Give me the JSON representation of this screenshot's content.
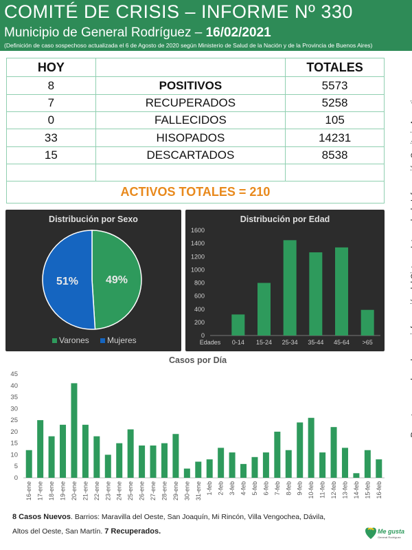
{
  "header": {
    "title": "COMITÉ DE CRISIS – INFORME Nº 330",
    "subtitle_prefix": "Municipio de General Rodríguez – ",
    "subtitle_date": "16/02/2021",
    "note": "(Definición de caso sospechoso actualizada el 6 de Agosto de 2020 según Ministerio de Salud de la Nación y de la Provincia de Buenos Aires)"
  },
  "table": {
    "col_hoy": "HOY",
    "col_totales": "TOTALES",
    "rows": [
      {
        "hoy": "8",
        "label": "POSITIVOS",
        "total": "5573"
      },
      {
        "hoy": "7",
        "label": "RECUPERADOS",
        "total": "5258"
      },
      {
        "hoy": "0",
        "label": "FALLECIDOS",
        "total": "105"
      },
      {
        "hoy": "33",
        "label": "HISOPADOS",
        "total": "14231"
      },
      {
        "hoy": "15",
        "label": "DESCARTADOS",
        "total": "8538"
      }
    ],
    "activos": "ACTIVOS TOTALES = 210"
  },
  "side_text": "Reporte generado en base a información del Sistema Integrado de Información Sanitaria Argentino.",
  "colors": {
    "green": "#2e8b57",
    "bar_green": "#2e9a5c",
    "blue": "#1565c0",
    "orange": "#e8891c",
    "panel": "#2c2c2c"
  },
  "chart_data": [
    {
      "type": "pie",
      "title": "Distribución por Sexo",
      "categories": [
        "Varones",
        "Mujeres"
      ],
      "values": [
        49,
        51
      ],
      "labels": [
        "49%",
        "51%"
      ],
      "colors": [
        "#2e9a5c",
        "#1565c0"
      ],
      "legend": "bottom"
    },
    {
      "type": "bar",
      "title": "Distribución por Edad",
      "xlabel": "Edades",
      "categories": [
        "0-14",
        "15-24",
        "25-34",
        "35-44",
        "45-64",
        ">65"
      ],
      "values": [
        320,
        800,
        1450,
        1265,
        1340,
        390
      ],
      "ylim": [
        0,
        1600
      ],
      "yticks": [
        "0",
        "200",
        "400",
        "600",
        "800",
        "1000",
        "1200",
        "1400",
        "1600"
      ]
    },
    {
      "type": "bar",
      "title": "Casos por Día",
      "categories": [
        "16-ene",
        "17-ene",
        "18-ene",
        "19-ene",
        "20-ene",
        "21-ene",
        "22-ene",
        "23-ene",
        "24-ene",
        "25-ene",
        "26-ene",
        "27-ene",
        "28-ene",
        "29-ene",
        "30-ene",
        "31-ene",
        "1-feb",
        "2-feb",
        "3-feb",
        "4-feb",
        "5-feb",
        "6-feb",
        "7-feb",
        "8-feb",
        "9-feb",
        "10-feb",
        "11-feb",
        "12-feb",
        "13-feb",
        "14-feb",
        "15-feb",
        "16-feb"
      ],
      "values": [
        12,
        25,
        18,
        23,
        41,
        23,
        18,
        10,
        15,
        21,
        14,
        14,
        15,
        19,
        4,
        7,
        8,
        13,
        11,
        6,
        9,
        11,
        20,
        12,
        24,
        26,
        11,
        22,
        13,
        2,
        12,
        8
      ],
      "ylim": [
        0,
        45
      ],
      "yticks": [
        "0",
        "5",
        "10",
        "15",
        "20",
        "25",
        "30",
        "35",
        "40",
        "45"
      ]
    }
  ],
  "footer": {
    "nuevos_bold": "8 Casos Nuevos",
    "nuevos_text": ". Barrios: Maravilla del Oeste, San Joaquín, Mi Rincón, Villa Vengochea, Dávila,",
    "line2_text": "Altos del Oeste, San Martín. ",
    "recuperados_bold": "7 Recuperados."
  },
  "logo": {
    "text": "Me gusta",
    "subtext": "General Rodríguez"
  }
}
